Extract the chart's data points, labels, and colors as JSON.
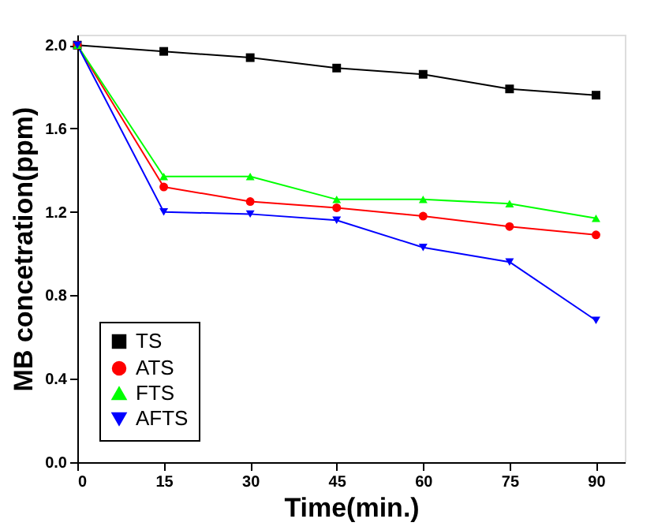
{
  "chart_data": {
    "type": "line",
    "xlabel": "Time(min.)",
    "ylabel": "MB concetration(ppm)",
    "x": [
      0,
      15,
      30,
      45,
      60,
      75,
      90
    ],
    "series": [
      {
        "name": "TS",
        "color": "#000000",
        "marker": "square",
        "values": [
          2.0,
          1.97,
          1.94,
          1.89,
          1.86,
          1.79,
          1.76
        ]
      },
      {
        "name": "ATS",
        "color": "#ff0000",
        "marker": "circle",
        "values": [
          2.0,
          1.32,
          1.25,
          1.22,
          1.18,
          1.13,
          1.09
        ]
      },
      {
        "name": "FTS",
        "color": "#00ff00",
        "marker": "triangle",
        "values": [
          2.0,
          1.37,
          1.37,
          1.26,
          1.26,
          1.24,
          1.17
        ]
      },
      {
        "name": "AFTS",
        "color": "#0000ff",
        "marker": "triangle-down",
        "values": [
          2.0,
          1.2,
          1.19,
          1.16,
          1.03,
          0.96,
          0.68
        ]
      }
    ],
    "xlim": [
      0,
      95
    ],
    "xticks": [
      0,
      15,
      30,
      45,
      60,
      75,
      90
    ],
    "ylim": [
      0,
      2.05
    ],
    "yticks": [
      {
        "value": 0,
        "label": "0.0"
      },
      0.4,
      0.8,
      1.2,
      1.6,
      {
        "value": 2,
        "label": "2.0"
      }
    ],
    "grid": false,
    "legend": "bottom left"
  }
}
